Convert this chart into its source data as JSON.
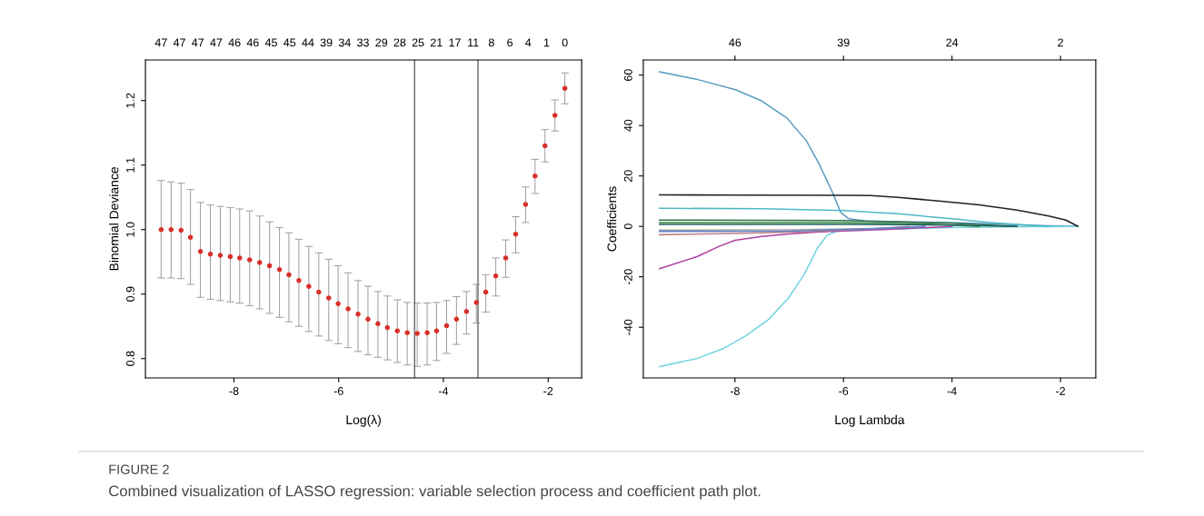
{
  "chart_data": [
    {
      "type": "scatter",
      "xlabel": "Log(λ)",
      "ylabel": "Binomial Deviance",
      "marker": "circle",
      "grid": false,
      "legend": false,
      "xlim": [
        -9.69,
        -1.36
      ],
      "ylim": [
        0.77,
        1.263
      ],
      "xticks": [
        -8,
        -6,
        -4,
        -2
      ],
      "yticks": [
        {
          "value": 0.8,
          "label": "0.8"
        },
        {
          "value": 0.9,
          "label": "0.9"
        },
        {
          "value": 1.0,
          "label": "1.0"
        },
        {
          "value": 1.1,
          "label": "1.1"
        },
        {
          "value": 1.2,
          "label": "1.2"
        }
      ],
      "annotations": [
        "47",
        "47",
        "47",
        "47",
        "46",
        "46",
        "45",
        "45",
        "44",
        "39",
        "34",
        "33",
        "29",
        "28",
        "25",
        "21",
        "17",
        "11",
        "8",
        "6",
        "4",
        "1",
        "0"
      ],
      "ref_lines": [
        {
          "axis": "x",
          "value": -4.55,
          "color": "#555555"
        },
        {
          "axis": "x",
          "value": -3.34,
          "color": "#555555"
        }
      ],
      "x": [
        -9.39,
        -9.2,
        -9.01,
        -8.83,
        -8.64,
        -8.45,
        -8.26,
        -8.07,
        -7.89,
        -7.7,
        -7.51,
        -7.32,
        -7.13,
        -6.95,
        -6.76,
        -6.57,
        -6.38,
        -6.19,
        -6.01,
        -5.82,
        -5.63,
        -5.44,
        -5.25,
        -5.07,
        -4.88,
        -4.69,
        -4.5,
        -4.31,
        -4.13,
        -3.94,
        -3.75,
        -3.56,
        -3.37,
        -3.19,
        -3.0,
        -2.81,
        -2.62,
        -2.43,
        -2.25,
        -2.06,
        -1.87,
        -1.68
      ],
      "series": [
        {
          "color": "#d8302a",
          "values": [
            1.0,
            1.0,
            0.999,
            0.988,
            0.966,
            0.962,
            0.96,
            0.958,
            0.956,
            0.953,
            0.949,
            0.944,
            0.938,
            0.93,
            0.921,
            0.912,
            0.903,
            0.894,
            0.885,
            0.877,
            0.869,
            0.861,
            0.854,
            0.848,
            0.843,
            0.84,
            0.839,
            0.84,
            0.843,
            0.851,
            0.861,
            0.873,
            0.887,
            0.903,
            0.928,
            0.956,
            0.993,
            1.039,
            1.083,
            1.13,
            1.177,
            1.219
          ],
          "errors": [
            [
              0.925,
              1.076
            ],
            [
              0.925,
              1.074
            ],
            [
              0.924,
              1.072
            ],
            [
              0.915,
              1.062
            ],
            [
              0.895,
              1.042
            ],
            [
              0.892,
              1.038
            ],
            [
              0.89,
              1.036
            ],
            [
              0.888,
              1.034
            ],
            [
              0.886,
              1.032
            ],
            [
              0.882,
              1.029
            ],
            [
              0.877,
              1.021
            ],
            [
              0.87,
              1.012
            ],
            [
              0.864,
              1.003
            ],
            [
              0.857,
              0.995
            ],
            [
              0.85,
              0.985
            ],
            [
              0.842,
              0.974
            ],
            [
              0.835,
              0.964
            ],
            [
              0.828,
              0.954
            ],
            [
              0.823,
              0.944
            ],
            [
              0.817,
              0.933
            ],
            [
              0.811,
              0.921
            ],
            [
              0.806,
              0.912
            ],
            [
              0.802,
              0.904
            ],
            [
              0.798,
              0.897
            ],
            [
              0.794,
              0.891
            ],
            [
              0.79,
              0.887
            ],
            [
              0.788,
              0.886
            ],
            [
              0.79,
              0.886
            ],
            [
              0.797,
              0.887
            ],
            [
              0.808,
              0.89
            ],
            [
              0.822,
              0.896
            ],
            [
              0.838,
              0.904
            ],
            [
              0.855,
              0.915
            ],
            [
              0.872,
              0.93
            ],
            [
              0.897,
              0.956
            ],
            [
              0.926,
              0.984
            ],
            [
              0.964,
              1.02
            ],
            [
              1.011,
              1.066
            ],
            [
              1.056,
              1.109
            ],
            [
              1.105,
              1.155
            ],
            [
              1.153,
              1.201
            ],
            [
              1.195,
              1.243
            ]
          ]
        }
      ]
    },
    {
      "type": "line",
      "xlabel": "Log Lambda",
      "ylabel": "Coefficients",
      "grid": false,
      "legend": false,
      "marker": "none",
      "line_style": "solid",
      "xlim": [
        -9.69,
        -1.35
      ],
      "ylim": [
        -60.1,
        66.0
      ],
      "xticks": [
        -8,
        -6,
        -4,
        -2
      ],
      "yticks": [
        -40,
        -20,
        0,
        20,
        40,
        60
      ],
      "annotations": [
        "46",
        "39",
        "24",
        "2"
      ],
      "series": [
        {
          "color": "#5a9dc0",
          "x": [
            -9.39,
            -8.7,
            -7.99,
            -7.52,
            -7.04,
            -6.68,
            -6.45,
            -6.2,
            -6.05,
            -5.9,
            -5.6,
            -4,
            -3,
            -2.2,
            -1.68
          ],
          "values": [
            61.3,
            58.3,
            54.2,
            49.9,
            42.9,
            33.8,
            24.8,
            13.3,
            5.5,
            3.0,
            2.1,
            1.5,
            0.8,
            0.2,
            0
          ]
        },
        {
          "color": "#70d4de",
          "x": [
            -9.39,
            -8.7,
            -8.22,
            -7.8,
            -7.38,
            -7.02,
            -6.72,
            -6.48,
            -6.3,
            -6.12,
            -5,
            -4,
            -3,
            -1.68
          ],
          "values": [
            -55.6,
            -52.4,
            -48.5,
            -43.4,
            -36.9,
            -28.6,
            -18.9,
            -8.6,
            -3.5,
            -1.9,
            -1.0,
            -0.5,
            -0.2,
            0
          ]
        },
        {
          "color": "#222222",
          "x": [
            -9.39,
            -8,
            -6,
            -5.5,
            -5,
            -4.2,
            -3.5,
            -2.8,
            -2.2,
            -1.9,
            -1.68
          ],
          "values": [
            12.5,
            12.4,
            12.3,
            12.2,
            11.5,
            10.0,
            8.5,
            6.5,
            4.0,
            2.5,
            0
          ]
        },
        {
          "color": "#4db8c4",
          "x": [
            -9.39,
            -7.5,
            -6,
            -5,
            -4,
            -3.3,
            -2.5,
            -2.2
          ],
          "values": [
            7.2,
            7.0,
            6.3,
            5.0,
            3.0,
            1.5,
            0.3,
            0
          ]
        },
        {
          "color": "#b040a0",
          "x": [
            -9.39,
            -8.7,
            -8.3,
            -8,
            -7.5,
            -7,
            -6.5,
            -6,
            -5,
            -4.3,
            -4
          ],
          "values": [
            -16.8,
            -12,
            -8,
            -5.5,
            -4,
            -3,
            -2.3,
            -1.8,
            -1,
            -0.3,
            0
          ]
        },
        {
          "color": "#c08080",
          "x": [
            -9.39,
            -8,
            -6.5,
            -5.5,
            -4.8
          ],
          "values": [
            -3.3,
            -2.8,
            -2,
            -1,
            0
          ]
        },
        {
          "color": "#3a8a3a",
          "x": [
            -9.39,
            -6,
            -4.5,
            -3.5
          ],
          "values": [
            1.5,
            1.5,
            1.0,
            0
          ]
        },
        {
          "color": "#2e6e4e",
          "x": [
            -9.39,
            -6,
            -4,
            -2.8
          ],
          "values": [
            2.5,
            2.3,
            1.2,
            0
          ]
        },
        {
          "color": "#a0a0a0",
          "x": [
            -9.39,
            -7,
            -5.5,
            -4.5
          ],
          "values": [
            -1.5,
            -1.4,
            -0.8,
            0
          ]
        },
        {
          "color": "#6080d0",
          "x": [
            -9.39,
            -7,
            -5.5,
            -4.5
          ],
          "values": [
            -2.0,
            -1.9,
            -1.0,
            0
          ]
        },
        {
          "color": "#206060",
          "x": [
            -9.39,
            -6,
            -4,
            -2.8
          ],
          "values": [
            0.8,
            0.8,
            0.5,
            0
          ]
        }
      ]
    },
    {
      "type": "other",
      "annotations": [
        "FIGURE 2",
        "Combined visualization of LASSO regression: variable selection process and coefficient path plot."
      ]
    }
  ]
}
